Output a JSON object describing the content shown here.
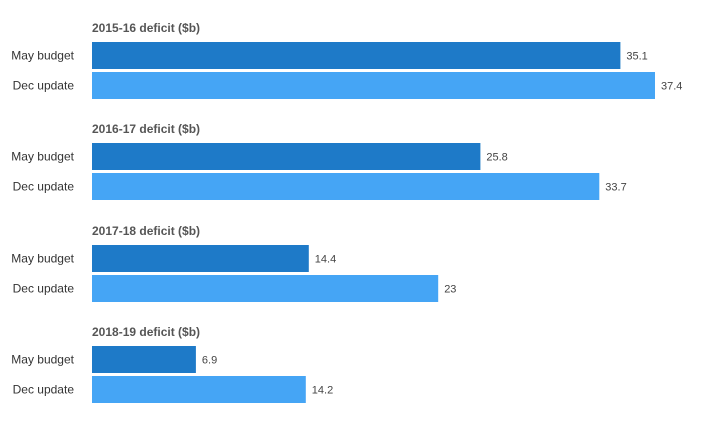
{
  "chart_data": [
    {
      "type": "bar",
      "orientation": "horizontal",
      "title": "2015-16 deficit ($b)",
      "categories": [
        "May budget",
        "Dec update"
      ],
      "values": [
        35.1,
        37.4
      ],
      "value_labels": [
        "35.1",
        "37.4"
      ],
      "colors": [
        "#1e7ac8",
        "#45a5f5"
      ]
    },
    {
      "type": "bar",
      "orientation": "horizontal",
      "title": "2016-17 deficit ($b)",
      "categories": [
        "May budget",
        "Dec update"
      ],
      "values": [
        25.8,
        33.7
      ],
      "value_labels": [
        "25.8",
        "33.7"
      ],
      "colors": [
        "#1e7ac8",
        "#45a5f5"
      ]
    },
    {
      "type": "bar",
      "orientation": "horizontal",
      "title": "2017-18 deficit ($b)",
      "categories": [
        "May budget",
        "Dec update"
      ],
      "values": [
        14.4,
        23
      ],
      "value_labels": [
        "14.4",
        "23"
      ],
      "colors": [
        "#1e7ac8",
        "#45a5f5"
      ]
    },
    {
      "type": "bar",
      "orientation": "horizontal",
      "title": "2018-19 deficit ($b)",
      "categories": [
        "May budget",
        "Dec update"
      ],
      "values": [
        6.9,
        14.2
      ],
      "value_labels": [
        "6.9",
        "14.2"
      ],
      "colors": [
        "#1e7ac8",
        "#45a5f5"
      ]
    }
  ],
  "shared_scale": {
    "xlim": [
      0,
      37.4
    ]
  },
  "grid": false,
  "legend": "none"
}
